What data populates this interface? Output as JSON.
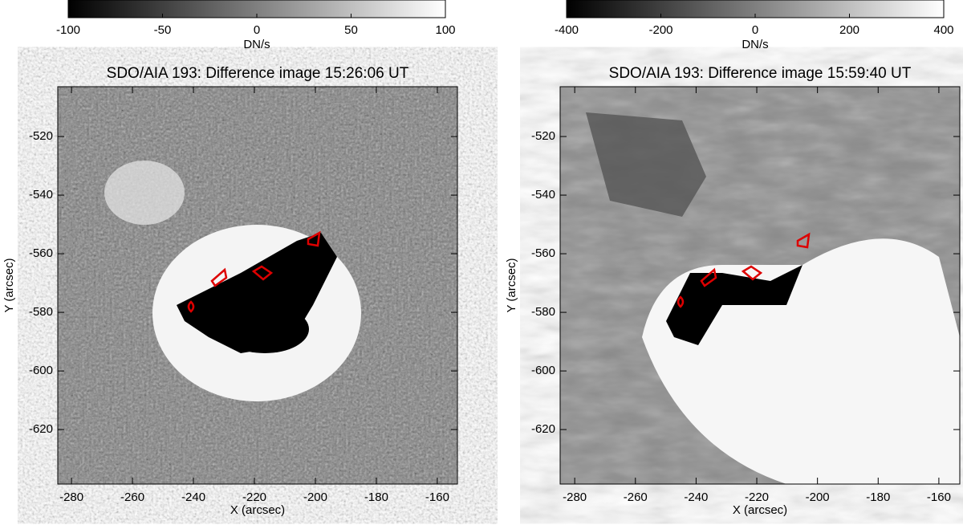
{
  "chart_data": [
    {
      "type": "image",
      "title": "SDO/AIA 193: Difference image 15:26:06 UT",
      "colorbar": {
        "label": "DN/s",
        "lim": [
          -100,
          100
        ],
        "ticks": [
          -100,
          -50,
          0,
          50,
          100
        ]
      },
      "xlabel": "X (arcsec)",
      "ylabel": "Y (arcsec)",
      "xlim": [
        -284.5,
        -153.4
      ],
      "xticks": [
        -280,
        -260,
        -240,
        -220,
        -200,
        -180,
        -160
      ],
      "ylim": [
        -638.6,
        -503
      ],
      "yticks": [
        -620,
        -600,
        -580,
        -560,
        -540,
        -520
      ]
    },
    {
      "type": "image",
      "title": "SDO/AIA 193: Difference image 15:59:40 UT",
      "colorbar": {
        "label": "DN/s",
        "lim": [
          -400,
          400
        ],
        "ticks": [
          -400,
          -200,
          0,
          200,
          400
        ]
      },
      "xlabel": "X (arcsec)",
      "ylabel": "Y (arcsec)",
      "xlim": [
        -284.8,
        -153.1
      ],
      "xticks": [
        -280,
        -260,
        -240,
        -220,
        -200,
        -180,
        -160
      ],
      "ylim": [
        -638.6,
        -503
      ],
      "yticks": [
        -620,
        -600,
        -580,
        -560,
        -540,
        -520
      ]
    }
  ]
}
